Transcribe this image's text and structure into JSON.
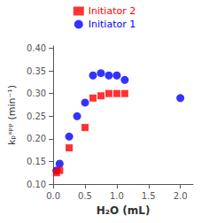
{
  "chart_data": {
    "type": "scatter",
    "x_label": "H₂O (mL)",
    "y_label": "kₚᵃᵖᵖ (min⁻¹)",
    "series": [
      {
        "name": "Initiator 1",
        "color": "#0000FF",
        "marker": "circle",
        "x": [
          0.05,
          0.1,
          0.25,
          0.375,
          0.5,
          0.625,
          0.75,
          0.875,
          1.0,
          1.125,
          2.0
        ],
        "values": [
          0.13,
          0.145,
          0.205,
          0.25,
          0.28,
          0.34,
          0.345,
          0.34,
          0.34,
          0.33,
          0.29
        ]
      },
      {
        "name": "Initiator 2",
        "color": "#FF0000",
        "marker": "square",
        "x": [
          0.05,
          0.1,
          0.25,
          0.5,
          0.625,
          0.75,
          0.875,
          1.0,
          1.125
        ],
        "values": [
          0.125,
          0.13,
          0.18,
          0.225,
          0.29,
          0.295,
          0.3,
          0.3,
          0.3
        ]
      }
    ],
    "xlim": [
      0,
      2.2
    ],
    "ylim": [
      0.1,
      0.405
    ],
    "xticks": [
      {
        "value": 0,
        "label": "0.0"
      },
      0.5,
      {
        "value": 1.0,
        "label": "1.0"
      },
      1.5,
      {
        "value": 2.0,
        "label": "2.0"
      }
    ],
    "yticks": [
      {
        "value": 0.1,
        "label": "0.10"
      },
      0.15,
      {
        "value": 0.2,
        "label": "0.20"
      },
      0.25,
      {
        "value": 0.3,
        "label": "0.30"
      },
      0.35,
      {
        "value": 0.4,
        "label": "0.40"
      }
    ],
    "grid": false,
    "legend": "top"
  }
}
